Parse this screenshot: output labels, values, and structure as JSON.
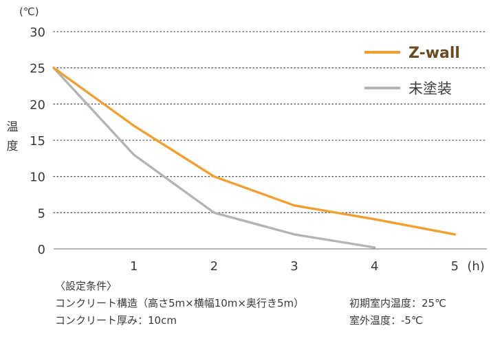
{
  "chart_data": {
    "type": "line",
    "x_ticks": [
      "1",
      "2",
      "3",
      "4",
      "5"
    ],
    "y_ticks": [
      "0",
      "5",
      "10",
      "15",
      "20",
      "25",
      "30"
    ],
    "xlim": [
      0,
      5.4
    ],
    "ylim": [
      0,
      30
    ],
    "x_unit": "(h)",
    "y_unit": "(℃)",
    "ylabel": "温度",
    "grid": "horizontal-dotted",
    "legend_position": "top-right",
    "series": [
      {
        "name": "Z-wall",
        "color": "#f0a030",
        "x": [
          0,
          1,
          2,
          3,
          4,
          5
        ],
        "y": [
          25,
          17,
          10,
          6,
          4.1,
          2
        ]
      },
      {
        "name": "未塗装",
        "color": "#b4b4b4",
        "x": [
          0,
          1,
          2,
          3,
          4
        ],
        "y": [
          25,
          13,
          5,
          2,
          0.2
        ]
      }
    ]
  },
  "notes": {
    "heading": "〈設定条件〉",
    "structure": "コンクリート構造（高さ5m×横幅10m×奥行き5m）",
    "thickness": "コンクリート厚み：10cm",
    "initial_temp": "初期室内温度：25℃",
    "outdoor_temp": "室外温度：-5℃"
  }
}
